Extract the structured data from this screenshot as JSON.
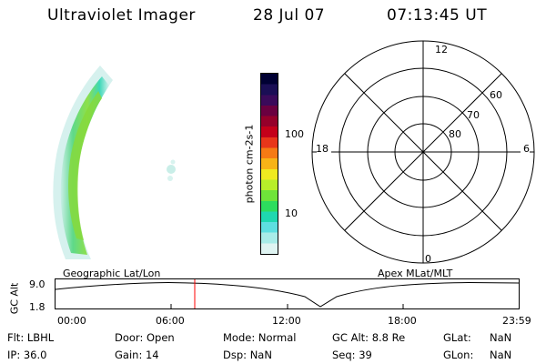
{
  "header": {
    "instrument": "Ultraviolet Imager",
    "date": "28 Jul 07",
    "time": "07:13:45 UT"
  },
  "colorbar": {
    "label": "photon cm-2s-1",
    "ticks": [
      "100",
      "10"
    ],
    "colors": [
      "#000033",
      "#1a0e55",
      "#3a0a5a",
      "#6a0040",
      "#95002a",
      "#c4001a",
      "#e8361a",
      "#f57a14",
      "#f7b317",
      "#f0ea20",
      "#b8ee2a",
      "#6fe33a",
      "#2ddd5e",
      "#1fd8b0",
      "#5edfe0",
      "#a8ece8",
      "#dff4f2"
    ]
  },
  "polar_plot": {
    "mlt_labels": {
      "top": "12",
      "left": "18",
      "right": "6",
      "bottom": "0"
    },
    "lat_labels": [
      "60",
      "70",
      "80"
    ]
  },
  "timeline": {
    "left_title": "Geographic Lat/Lon",
    "right_title": "Apex MLat/MLT",
    "y_label": "GC Alt",
    "y_max": "9.0",
    "y_min": "1.8",
    "x_ticks": [
      "00:00",
      "06:00",
      "12:00",
      "18:00",
      "23:59"
    ],
    "marker_color": "#ff0000"
  },
  "status": {
    "flt_label": "Flt:",
    "flt_value": "LBHL",
    "ip_label": "IP:",
    "ip_value": "36.0",
    "door_label": "Door:",
    "door_value": "Open",
    "gain_label": "Gain:",
    "gain_value": "14",
    "mode_label": "Mode:",
    "mode_value": "Normal",
    "dsp_label": "Dsp:",
    "dsp_value": "NaN",
    "gcalt_label": "GC Alt:",
    "gcalt_value": "8.8 Re",
    "seq_label": "Seq:",
    "seq_value": "39",
    "glat_label": "GLat:",
    "glat_value": "NaN",
    "glon_label": "GLon:",
    "glon_value": "NaN"
  }
}
